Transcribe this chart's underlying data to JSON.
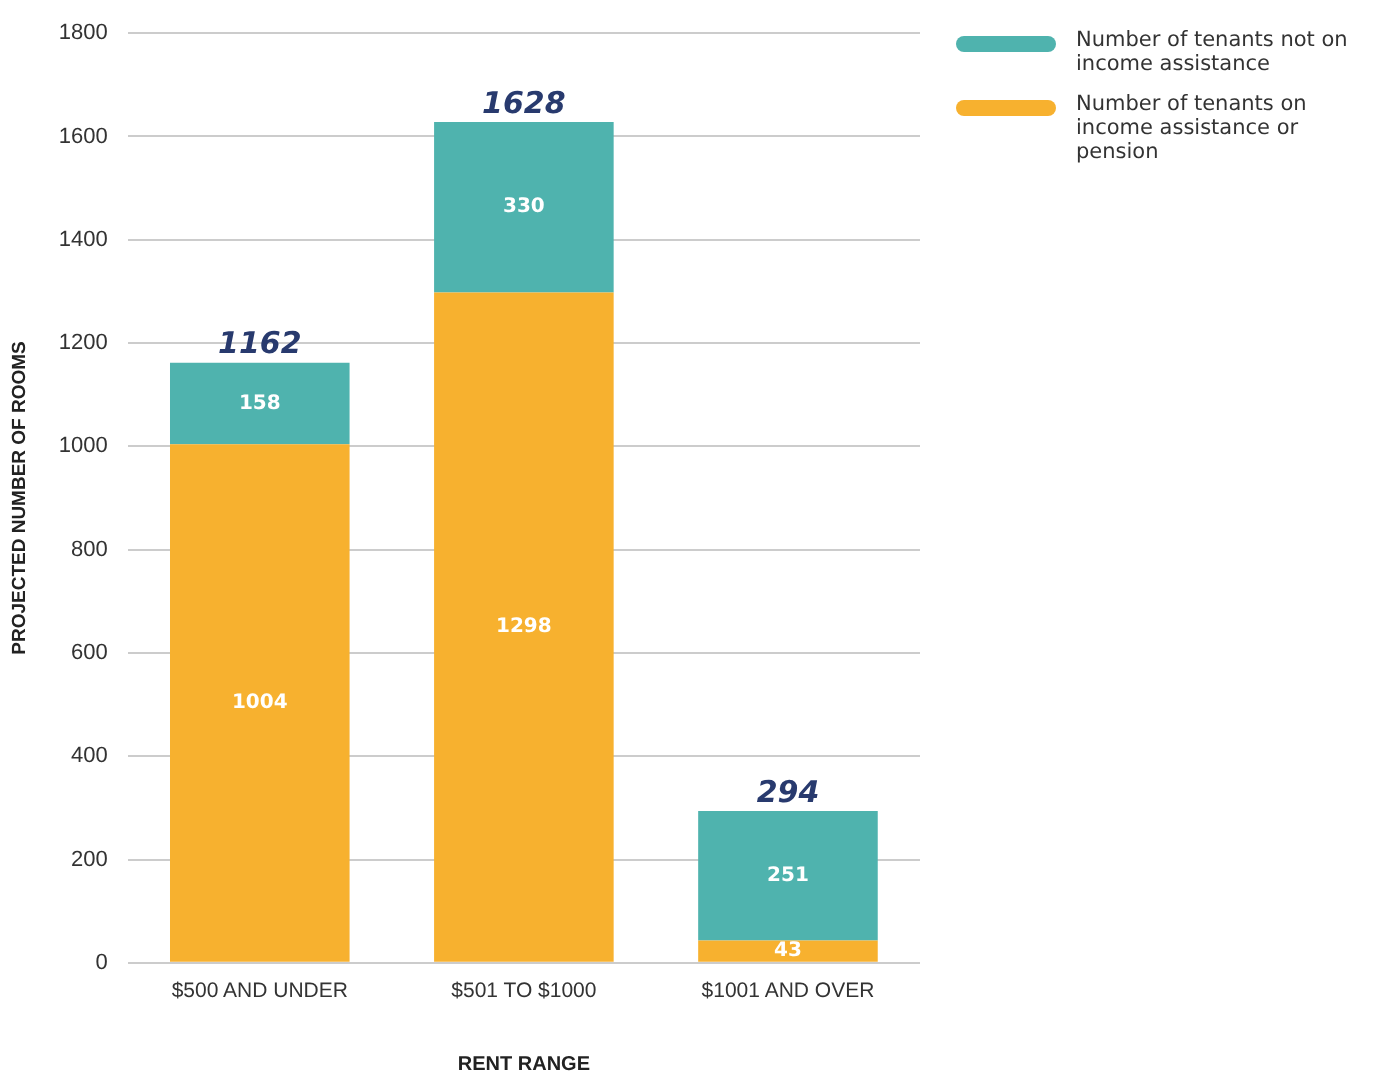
{
  "chart_data": {
    "type": "bar",
    "stacked": true,
    "xlabel": "RENT RANGE",
    "ylabel": "PROJECTED NUMBER OF ROOMS",
    "categories": [
      "$500 AND UNDER",
      "$501 TO $1000",
      "$1001 AND OVER"
    ],
    "series": [
      {
        "name": "Number of tenants on income assistance or pension",
        "color": "#f7b12f",
        "values": [
          1004,
          1298,
          43
        ]
      },
      {
        "name": "Number of tenants not on income assistance",
        "color": "#4fb3ae",
        "values": [
          158,
          330,
          251
        ]
      }
    ],
    "totals": [
      "1162",
      "1628",
      "294"
    ],
    "data_labels": true,
    "ylim": [
      0,
      1800
    ],
    "yticks": [
      0,
      200,
      400,
      600,
      800,
      1000,
      1200,
      1400,
      1600,
      1800
    ],
    "grid": "y",
    "legend": "top right"
  }
}
